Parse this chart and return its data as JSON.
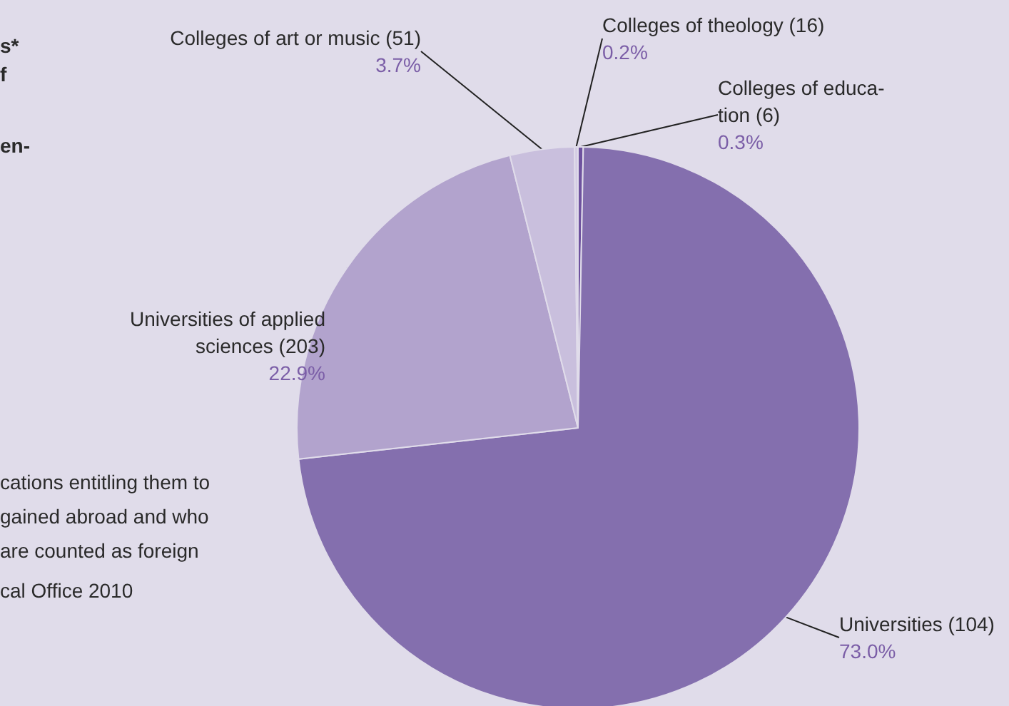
{
  "chart_data": {
    "type": "pie",
    "categories": [
      "Colleges of educa-\ntion (6)",
      "Universities (104)",
      "Universities of applied\nsciences (203)",
      "Colleges of art or music (51)",
      "Colleges of theology (16)"
    ],
    "values": [
      0.3,
      73.0,
      22.9,
      3.7,
      0.2
    ],
    "colors": [
      "#6e529e",
      "#846fae",
      "#b2a3cd",
      "#c9bfdd",
      "#d4cce4"
    ],
    "value_labels": [
      "0.3%",
      "73.0%",
      "22.9%",
      "3.7%",
      "0.2%"
    ],
    "annotations": [
      "s*",
      "f",
      "en-",
      "cations entitling them to\ngained abroad and who\nare counted as foreign",
      "cal Office 2010"
    ]
  }
}
